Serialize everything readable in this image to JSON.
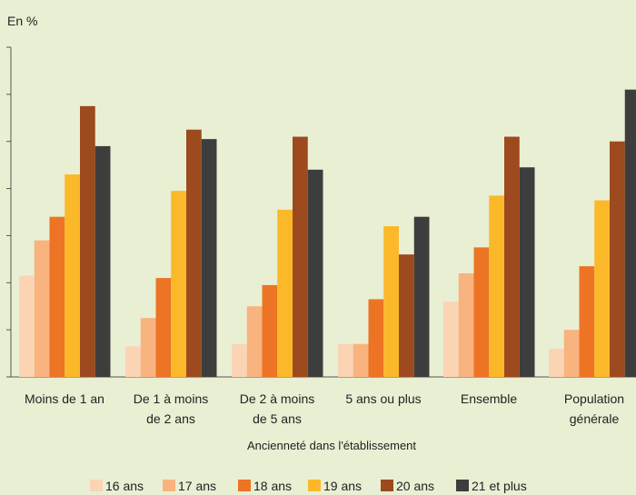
{
  "chart_data": {
    "type": "bar",
    "unit_label": "En %",
    "xlabel": "Ancienneté dans l'établissement",
    "ylabel": "",
    "ylim": [
      0,
      70
    ],
    "grid": false,
    "legend_position": "bottom",
    "categories": [
      [
        "Moins de 1 an"
      ],
      [
        "De 1 à moins",
        "de 2 ans"
      ],
      [
        "De 2 à moins",
        "de 5 ans"
      ],
      [
        "5 ans ou plus"
      ],
      [
        "Ensemble"
      ],
      [
        "Population",
        "générale"
      ]
    ],
    "series": [
      {
        "name": "16 ans",
        "color": "#fbd4b4",
        "values": [
          21.5,
          6.5,
          7,
          7,
          16,
          6
        ]
      },
      {
        "name": "17 ans",
        "color": "#f9b37f",
        "values": [
          29,
          12.5,
          15,
          7,
          22,
          10
        ]
      },
      {
        "name": "18 ans",
        "color": "#ec7424",
        "values": [
          34,
          21,
          19.5,
          16.5,
          27.5,
          23.5
        ]
      },
      {
        "name": "19 ans",
        "color": "#fbb92a",
        "values": [
          43,
          39.5,
          35.5,
          32,
          38.5,
          37.5
        ]
      },
      {
        "name": "20 ans",
        "color": "#9d4a1e",
        "values": [
          57.5,
          52.5,
          51,
          26,
          51,
          50
        ]
      },
      {
        "name": "21 et plus",
        "color": "#3d3d3d",
        "values": [
          49,
          50.5,
          44,
          34,
          44.5,
          61
        ]
      }
    ]
  }
}
